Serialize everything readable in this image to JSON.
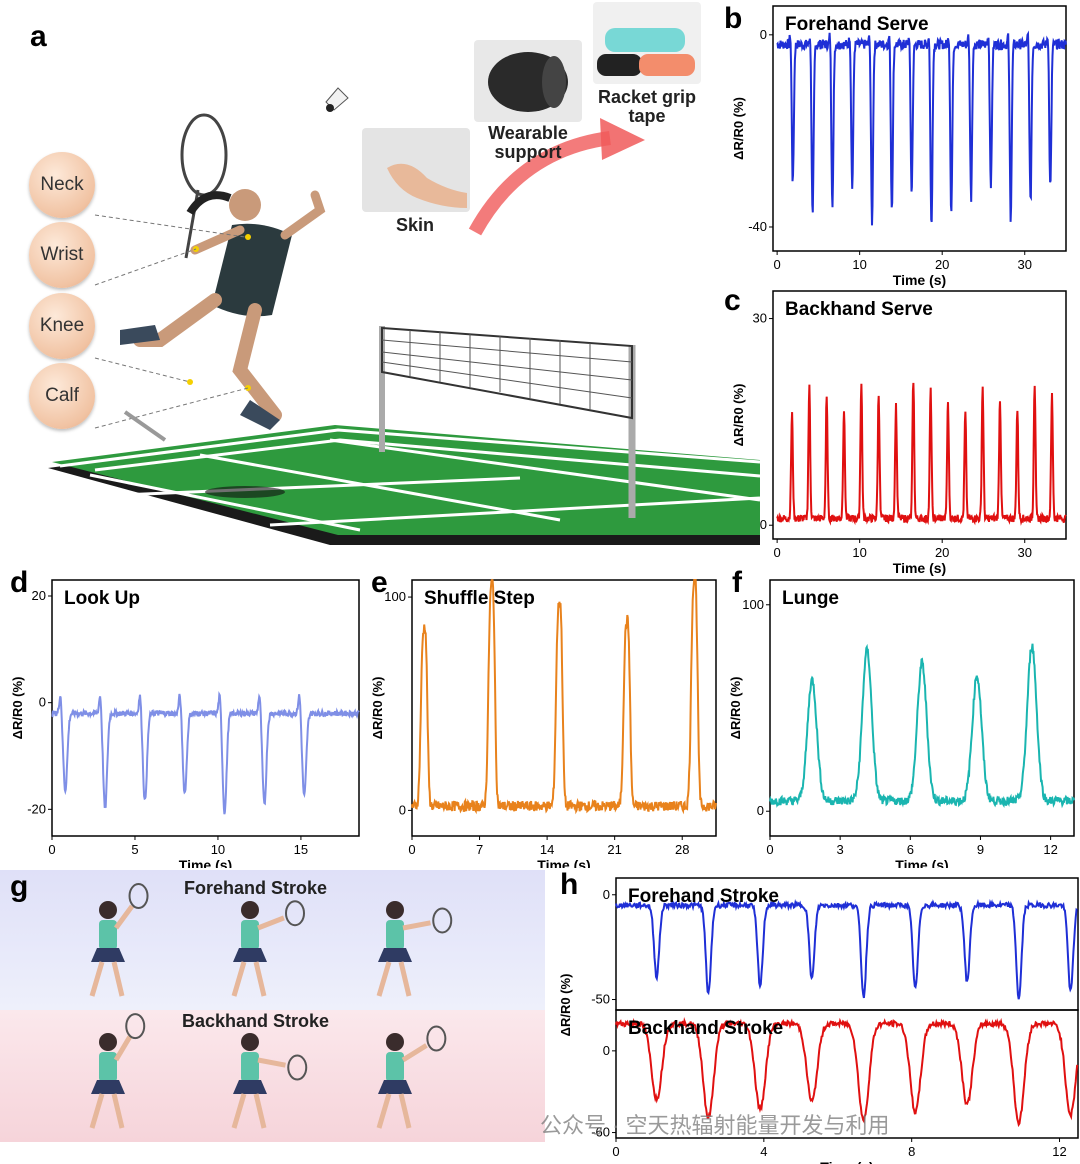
{
  "panel_a": {
    "letter": "a",
    "body_labels": [
      "Neck",
      "Wrist",
      "Knee",
      "Calf"
    ],
    "mount_labels": {
      "skin": "Skin",
      "support": "Wearable support",
      "grip": "Racket grip tape"
    }
  },
  "panel_g": {
    "letter": "g",
    "forehand_title": "Forehand Stroke",
    "backhand_title": "Backhand Stroke"
  },
  "watermark": "公众号 · 空天热辐射能量开发与利用",
  "chart_data": [
    {
      "id": "b",
      "type": "line",
      "title": "Forehand Serve",
      "color": "#1f2fd6",
      "xlabel": "Time (s)",
      "ylabel": "ΔR/R0 (%)",
      "xlim": [
        -0.5,
        35
      ],
      "ylim": [
        -45,
        6
      ],
      "xticks": [
        0,
        10,
        20,
        30
      ],
      "yticks": [
        0,
        -40
      ],
      "pattern": {
        "period": 2.4,
        "start": 1.9,
        "baseline": -2,
        "peak": -36,
        "spike": 3,
        "count": 14
      }
    },
    {
      "id": "c",
      "type": "line",
      "title": "Backhand Serve",
      "color": "#e01010",
      "xlabel": "Time (s)",
      "ylabel": "ΔR/R0 (%)",
      "xlim": [
        -0.5,
        35
      ],
      "ylim": [
        -2,
        34
      ],
      "xticks": [
        0,
        10,
        20,
        30
      ],
      "yticks": [
        0,
        30
      ],
      "pattern": {
        "period": 2.1,
        "start": 1.8,
        "baseline": 1,
        "peak": 19,
        "spike": 0,
        "count": 16
      }
    },
    {
      "id": "d",
      "type": "line",
      "title": "Look Up",
      "color": "#7f8fe6",
      "xlabel": "Time (s)",
      "ylabel": "ΔR/R0 (%)",
      "xlim": [
        0,
        18.5
      ],
      "ylim": [
        -25,
        23
      ],
      "xticks": [
        0,
        5,
        10,
        15
      ],
      "yticks": [
        20,
        0,
        -20
      ],
      "pattern": {
        "period": 2.4,
        "start": 0.8,
        "baseline": -2,
        "peak": -19,
        "spike": 4,
        "count": 7
      }
    },
    {
      "id": "e",
      "type": "line",
      "title": "Shuffle Step",
      "color": "#e8821c",
      "xlabel": "Time (s)",
      "ylabel": "ΔR/R0 (%)",
      "xlim": [
        0,
        31.5
      ],
      "ylim": [
        -12,
        108
      ],
      "xticks": [
        0,
        7,
        14,
        21,
        28
      ],
      "yticks": [
        100,
        0
      ],
      "pattern": {
        "period": 7,
        "start": 1.1,
        "baseline": 2,
        "peak": 83,
        "spike": 0,
        "count": 5
      }
    },
    {
      "id": "f",
      "type": "line",
      "title": "Lunge",
      "color": "#1ab5b0",
      "xlabel": "Time (s)",
      "ylabel": "ΔR/R0 (%)",
      "xlim": [
        0,
        13
      ],
      "ylim": [
        -12,
        112
      ],
      "xticks": [
        0,
        3,
        6,
        9,
        12
      ],
      "yticks": [
        100,
        0
      ],
      "pattern": {
        "period": 2.35,
        "start": 1.8,
        "baseline": 5,
        "peak": 74,
        "spike": 0,
        "count": 5
      }
    },
    {
      "id": "h1",
      "type": "line",
      "title": "Forehand Stroke",
      "color": "#1f2fd6",
      "xlabel": "",
      "ylabel": "ΔR/R0 (%)",
      "xlim": [
        0,
        12.5
      ],
      "ylim": [
        -55,
        8
      ],
      "xticks": [],
      "yticks": [
        0,
        -50
      ],
      "pattern": {
        "period": 1.4,
        "start": 1.1,
        "baseline": -5,
        "peak": -45,
        "spike": 0,
        "count": 9
      }
    },
    {
      "id": "h2",
      "type": "line",
      "title": "Backhand Stroke",
      "color": "#e01010",
      "xlabel": "Time (s)",
      "ylabel": "",
      "xlim": [
        0,
        12.5
      ],
      "ylim": [
        -64,
        30
      ],
      "xticks": [
        0,
        4,
        8,
        12
      ],
      "yticks": [
        0,
        -60
      ],
      "pattern": {
        "period": 1.4,
        "start": 1.1,
        "baseline": 20,
        "peak": -45,
        "spike": 0,
        "count": 9
      }
    }
  ],
  "panel_letters": {
    "b": "b",
    "c": "c",
    "d": "d",
    "e": "e",
    "f": "f",
    "h": "h"
  }
}
